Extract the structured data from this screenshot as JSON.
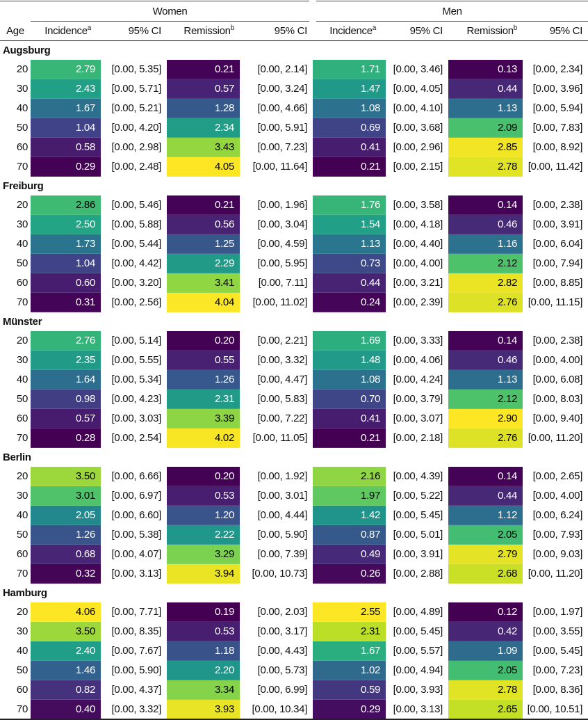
{
  "header": {
    "women": "Women",
    "men": "Men",
    "columns": [
      "Age",
      "Incidence",
      "95% CI",
      "Remission",
      "95% CI",
      "Incidence",
      "95% CI",
      "Remission",
      "95% CI"
    ],
    "incidence_sup": "a",
    "remission_sup": "b"
  },
  "colormap": "viridis",
  "heat_text_colors": {
    "dark": "#ffffff",
    "light": "#000000"
  },
  "groups": [
    {
      "name": "Augsburg",
      "rows": [
        [
          "20",
          "2.79",
          "[0.00, 5.35]",
          "0.21",
          "[0.00, 2.14]",
          "1.71",
          "[0.00, 3.46]",
          "0.13",
          "[0.00, 2.34]"
        ],
        [
          "30",
          "2.43",
          "[0.00, 5.71]",
          "0.57",
          "[0.00, 3.24]",
          "1.47",
          "[0.00, 4.05]",
          "0.44",
          "[0.00, 3.96]"
        ],
        [
          "40",
          "1.67",
          "[0.00, 5.21]",
          "1.28",
          "[0.00, 4.66]",
          "1.08",
          "[0.00, 4.10]",
          "1.13",
          "[0.00, 5.94]"
        ],
        [
          "50",
          "1.04",
          "[0.00, 4.20]",
          "2.34",
          "[0.00, 5.91]",
          "0.69",
          "[0.00, 3.68]",
          "2.09",
          "[0.00, 7.83]"
        ],
        [
          "60",
          "0.58",
          "[0.00, 2.98]",
          "3.43",
          "[0.00, 7.23]",
          "0.41",
          "[0.00, 2.96]",
          "2.85",
          "[0.00, 8.92]"
        ],
        [
          "70",
          "0.29",
          "[0.00, 2.48]",
          "4.05",
          "[0.00, 11.64]",
          "0.21",
          "[0.00, 2.15]",
          "2.78",
          "[0.00, 11.42]"
        ]
      ]
    },
    {
      "name": "Freiburg",
      "rows": [
        [
          "20",
          "2.86",
          "[0.00, 5.46]",
          "0.21",
          "[0.00, 1.96]",
          "1.76",
          "[0.00, 3.58]",
          "0.14",
          "[0.00, 2.38]"
        ],
        [
          "30",
          "2.50",
          "[0.00, 5.88]",
          "0.56",
          "[0.00, 3.04]",
          "1.54",
          "[0.00, 4.18]",
          "0.46",
          "[0.00, 3.91]"
        ],
        [
          "40",
          "1.73",
          "[0.00, 5.44]",
          "1.25",
          "[0.00, 4.59]",
          "1.13",
          "[0.00, 4.40]",
          "1.16",
          "[0.00, 6.04]"
        ],
        [
          "50",
          "1.04",
          "[0.00, 4.42]",
          "2.29",
          "[0.00, 5.95]",
          "0.73",
          "[0.00, 4.00]",
          "2.12",
          "[0.00, 7.94]"
        ],
        [
          "60",
          "0.60",
          "[0.00, 3.20]",
          "3.41",
          "[0.00, 7.11]",
          "0.44",
          "[0.00, 3.21]",
          "2.82",
          "[0.00, 8.85]"
        ],
        [
          "70",
          "0.31",
          "[0.00, 2.56]",
          "4.04",
          "[0.00, 11.02]",
          "0.24",
          "[0.00, 2.39]",
          "2.76",
          "[0.00, 11.15]"
        ]
      ]
    },
    {
      "name": "Münster",
      "rows": [
        [
          "20",
          "2.76",
          "[0.00, 5.14]",
          "0.20",
          "[0.00, 2.21]",
          "1.69",
          "[0.00, 3.33]",
          "0.14",
          "[0.00, 2.38]"
        ],
        [
          "30",
          "2.35",
          "[0.00, 5.55]",
          "0.55",
          "[0.00, 3.32]",
          "1.48",
          "[0.00, 4.06]",
          "0.46",
          "[0.00, 4.00]"
        ],
        [
          "40",
          "1.64",
          "[0.00, 5.34]",
          "1.26",
          "[0.00, 4.47]",
          "1.08",
          "[0.00, 4.24]",
          "1.13",
          "[0.00, 6.08]"
        ],
        [
          "50",
          "0.98",
          "[0.00, 4.23]",
          "2.31",
          "[0.00, 5.83]",
          "0.70",
          "[0.00, 3.79]",
          "2.12",
          "[0.00, 8.03]"
        ],
        [
          "60",
          "0.57",
          "[0.00, 3.03]",
          "3.39",
          "[0.00, 7.22]",
          "0.41",
          "[0.00, 3.07]",
          "2.90",
          "[0.00, 9.40]"
        ],
        [
          "70",
          "0.28",
          "[0.00, 2.54]",
          "4.02",
          "[0.00, 11.05]",
          "0.21",
          "[0.00, 2.18]",
          "2.76",
          "[0.00, 11.20]"
        ]
      ]
    },
    {
      "name": "Berlin",
      "rows": [
        [
          "20",
          "3.50",
          "[0.00, 6.66]",
          "0.20",
          "[0.00, 1.92]",
          "2.16",
          "[0.00, 4.39]",
          "0.14",
          "[0.00, 2.65]"
        ],
        [
          "30",
          "3.01",
          "[0.00, 6.97]",
          "0.53",
          "[0.00, 3.01]",
          "1.97",
          "[0.00, 5.22]",
          "0.44",
          "[0.00, 4.00]"
        ],
        [
          "40",
          "2.05",
          "[0.00, 6.60]",
          "1.20",
          "[0.00, 4.44]",
          "1.42",
          "[0.00, 5.45]",
          "1.12",
          "[0.00, 6.24]"
        ],
        [
          "50",
          "1.26",
          "[0.00, 5.38]",
          "2.22",
          "[0.00, 5.90]",
          "0.87",
          "[0.00, 5.01]",
          "2.05",
          "[0.00, 7.93]"
        ],
        [
          "60",
          "0.68",
          "[0.00, 4.07]",
          "3.29",
          "[0.00, 7.39]",
          "0.49",
          "[0.00, 3.91]",
          "2.79",
          "[0.00, 9.03]"
        ],
        [
          "70",
          "0.32",
          "[0.00, 3.13]",
          "3.94",
          "[0.00, 10.73]",
          "0.26",
          "[0.00, 2.88]",
          "2.68",
          "[0.00, 11.20]"
        ]
      ]
    },
    {
      "name": "Hamburg",
      "rows": [
        [
          "20",
          "4.06",
          "[0.00, 7.71]",
          "0.19",
          "[0.00, 2.03]",
          "2.55",
          "[0.00, 4.89]",
          "0.12",
          "[0.00, 1.97]"
        ],
        [
          "30",
          "3.50",
          "[0.00, 8.35]",
          "0.53",
          "[0.00, 3.17]",
          "2.31",
          "[0.00, 5.45]",
          "0.42",
          "[0.00, 3.55]"
        ],
        [
          "40",
          "2.40",
          "[0.00, 7.67]",
          "1.18",
          "[0.00, 4.43]",
          "1.67",
          "[0.00, 5.57]",
          "1.09",
          "[0.00, 5.45]"
        ],
        [
          "50",
          "1.46",
          "[0.00, 5.90]",
          "2.20",
          "[0.00, 5.73]",
          "1.02",
          "[0.00, 4.94]",
          "2.05",
          "[0.00, 7.23]"
        ],
        [
          "60",
          "0.82",
          "[0.00, 4.37]",
          "3.34",
          "[0.00, 6.99]",
          "0.59",
          "[0.00, 3.93]",
          "2.78",
          "[0.00, 8.36]"
        ],
        [
          "70",
          "0.40",
          "[0.00, 3.32]",
          "3.93",
          "[0.00, 10.34]",
          "0.29",
          "[0.00, 3.13]",
          "2.65",
          "[0.00, 10.51]"
        ]
      ]
    }
  ]
}
